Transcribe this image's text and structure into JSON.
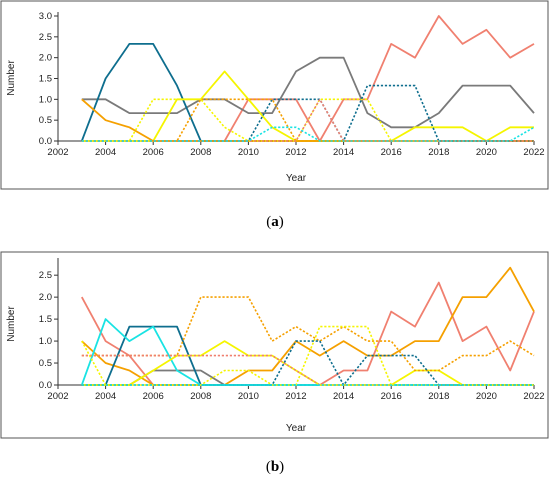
{
  "chart_data": [
    {
      "type": "line",
      "caption": "a",
      "xlabel": "Year",
      "ylabel": "Number",
      "xlim": [
        2002,
        2022
      ],
      "ylim": [
        0,
        3.0
      ],
      "xticks": [
        2002,
        2004,
        2006,
        2008,
        2010,
        2012,
        2014,
        2016,
        2018,
        2020,
        2022
      ],
      "yticks": [
        "0.0",
        "0.5",
        "1.0",
        "1.5",
        "2.0",
        "2.5",
        "3.0"
      ],
      "x": [
        2003,
        2004,
        2005,
        2006,
        2007,
        2008,
        2009,
        2010,
        2011,
        2012,
        2013,
        2014,
        2015,
        2016,
        2017,
        2018,
        2019,
        2020,
        2021,
        2022
      ],
      "series": [
        {
          "color": "#f08070",
          "dash": "solid",
          "values": [
            0,
            0,
            0,
            0,
            0,
            0,
            0,
            1,
            1,
            1,
            0,
            1,
            1,
            2.33,
            2,
            3,
            2.33,
            2.67,
            2,
            2.33
          ]
        },
        {
          "color": "#7a7a7a",
          "dash": "solid",
          "values": [
            1,
            1,
            0.67,
            0.67,
            0.67,
            1,
            1,
            0.67,
            0.67,
            1.67,
            2,
            2,
            0.67,
            0.33,
            0.33,
            0.67,
            1.33,
            1.33,
            1.33,
            0.67
          ]
        },
        {
          "color": "#0e6e8e",
          "dash": "solid",
          "values": [
            0,
            1.5,
            2.33,
            2.33,
            1.33,
            0,
            0,
            0,
            0,
            0,
            0,
            0,
            0,
            0,
            0,
            0,
            0,
            0,
            0,
            0
          ]
        },
        {
          "color": "#f5f500",
          "dash": "solid",
          "values": [
            0,
            0,
            0,
            0,
            1,
            1,
            1.67,
            1,
            0.33,
            0,
            0,
            0,
            0,
            0,
            0.33,
            0.33,
            0.33,
            0,
            0.33,
            0.33
          ]
        },
        {
          "color": "#f5a000",
          "dash": "solid",
          "values": [
            1,
            0.5,
            0.33,
            0,
            0,
            0,
            0,
            0,
            0,
            0,
            0,
            0,
            0,
            0,
            0,
            0,
            0,
            0,
            0,
            0
          ]
        },
        {
          "color": "#f5f500",
          "dash": "dotted",
          "values": [
            0,
            0,
            0,
            1,
            1,
            1,
            0.33,
            0,
            0,
            0,
            1,
            1,
            1,
            0,
            0,
            0,
            0,
            0,
            0,
            0
          ]
        },
        {
          "color": "#0e6e8e",
          "dash": "dotted",
          "values": [
            0,
            0,
            0,
            0,
            0,
            0,
            0,
            0,
            1,
            1,
            1,
            0,
            1.33,
            1.33,
            1.33,
            0,
            0,
            0,
            0,
            0
          ]
        },
        {
          "color": "#f5a000",
          "dash": "dotted",
          "values": [
            0,
            0,
            0,
            0,
            0,
            1,
            1,
            1,
            1,
            0,
            0,
            0,
            0,
            0,
            0,
            0,
            0,
            0,
            0,
            0
          ]
        },
        {
          "color": "#f08070",
          "dash": "dotted",
          "values": [
            0,
            0,
            0,
            0,
            0,
            0,
            0,
            0,
            0,
            0,
            1,
            0,
            0,
            0,
            0,
            0,
            0,
            0,
            0,
            0
          ]
        },
        {
          "color": "#19e3e3",
          "dash": "dotted",
          "values": [
            0,
            0,
            0,
            0,
            0,
            0,
            0,
            0,
            0.33,
            0.33,
            0,
            0,
            0,
            0,
            0,
            0,
            0,
            0,
            0,
            0.33
          ]
        }
      ]
    },
    {
      "type": "line",
      "caption": "b",
      "xlabel": "Year",
      "ylabel": "Number",
      "xlim": [
        2002,
        2022
      ],
      "ylim": [
        0,
        2.8
      ],
      "xticks": [
        2002,
        2004,
        2006,
        2008,
        2010,
        2012,
        2014,
        2016,
        2018,
        2020,
        2022
      ],
      "yticks": [
        "0.0",
        "0.5",
        "1.0",
        "1.5",
        "2.0",
        "2.5"
      ],
      "x": [
        2003,
        2004,
        2005,
        2006,
        2007,
        2008,
        2009,
        2010,
        2011,
        2012,
        2013,
        2014,
        2015,
        2016,
        2017,
        2018,
        2019,
        2020,
        2021,
        2022
      ],
      "series": [
        {
          "color": "#f08070",
          "dash": "solid",
          "values": [
            2,
            1,
            0.67,
            0,
            0,
            0,
            0,
            0,
            0,
            0,
            0,
            0.33,
            0.33,
            1.67,
            1.33,
            2.33,
            1,
            1.33,
            0.33,
            1.67
          ]
        },
        {
          "color": "#f5a000",
          "dash": "solid",
          "values": [
            1,
            0.5,
            0.33,
            0,
            0,
            0,
            0,
            0.33,
            0.33,
            1,
            0.67,
            1,
            0.67,
            0.67,
            1,
            1,
            2,
            2,
            2.67,
            1.67
          ]
        },
        {
          "color": "#7a7a7a",
          "dash": "solid",
          "values": [
            0,
            0,
            0,
            0.33,
            0.33,
            0.33,
            0,
            0,
            0,
            0,
            0,
            0,
            0,
            0,
            0,
            0,
            0,
            0,
            0,
            0
          ]
        },
        {
          "color": "#0e6e8e",
          "dash": "solid",
          "values": [
            0,
            0,
            1.33,
            1.33,
            1.33,
            0,
            0,
            0,
            0,
            0,
            0,
            0,
            0,
            0,
            0,
            0,
            0,
            0,
            0,
            0
          ]
        },
        {
          "color": "#19e3e3",
          "dash": "solid",
          "values": [
            0,
            1.5,
            1,
            1.33,
            0.33,
            0,
            0,
            0,
            0,
            0,
            0,
            0,
            0,
            0,
            0,
            0,
            0,
            0,
            0,
            0
          ]
        },
        {
          "color": "#f5f500",
          "dash": "solid",
          "values": [
            0,
            0,
            0,
            0.33,
            0.67,
            0.67,
            1,
            0.67,
            0.67,
            0.33,
            0,
            0,
            0,
            0,
            0.33,
            0.33,
            0,
            0,
            0,
            0
          ]
        },
        {
          "color": "#f5a000",
          "dash": "dotted",
          "values": [
            0.67,
            0.67,
            0.67,
            0.67,
            0.67,
            2,
            2,
            2,
            1,
            1.33,
            1,
            1.33,
            1,
            1,
            0.33,
            0.33,
            0.67,
            0.67,
            1,
            0.67
          ]
        },
        {
          "color": "#f08070",
          "dash": "dotted",
          "values": [
            0.67,
            0.67,
            0.67,
            0.67,
            0.67,
            0.67,
            0.67,
            0.67,
            0.67,
            0.33,
            0,
            0,
            0,
            0,
            0,
            0,
            0,
            0,
            0,
            0
          ]
        },
        {
          "color": "#f5f500",
          "dash": "dotted",
          "values": [
            1,
            0,
            0,
            0,
            0,
            0,
            0.33,
            0.33,
            0,
            0,
            1.33,
            1.33,
            1.33,
            0,
            0,
            0,
            0,
            0,
            0,
            0
          ]
        },
        {
          "color": "#0e6e8e",
          "dash": "dotted",
          "values": [
            0,
            0,
            0,
            0,
            0,
            0,
            0,
            0,
            0,
            1,
            1,
            0,
            0.67,
            0.67,
            0.67,
            0,
            0,
            0,
            0,
            0
          ]
        },
        {
          "color": "#19e3e3",
          "dash": "dotted",
          "values": [
            0,
            0,
            0,
            0,
            0,
            0,
            0,
            0,
            0,
            0,
            0,
            0,
            0,
            0,
            0,
            0,
            0,
            0,
            0,
            0
          ]
        }
      ]
    }
  ]
}
